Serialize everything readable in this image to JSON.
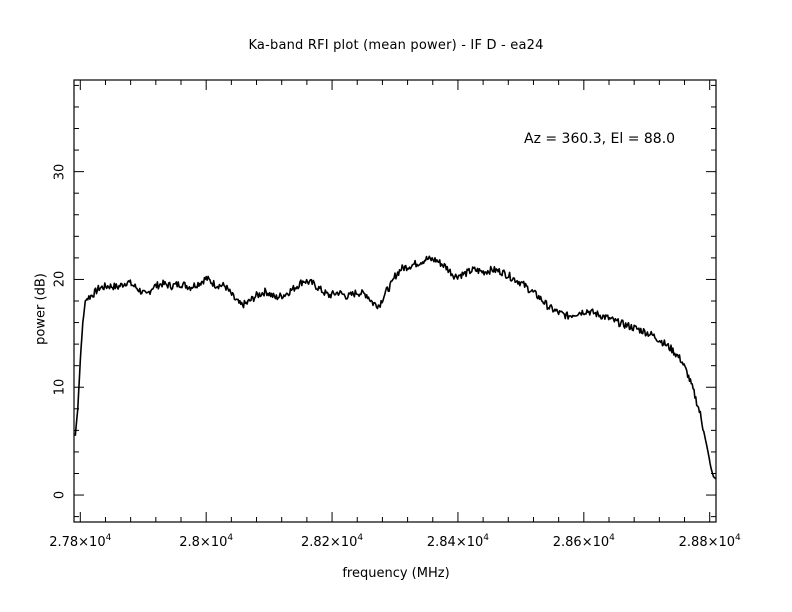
{
  "chart_data": {
    "type": "line",
    "title": "Ka-band RFI plot (mean power) - IF D - ea24",
    "xlabel": "frequency (MHz)",
    "ylabel": "power (dB)",
    "annotation": "Az = 360.3, El = 88.0",
    "xlim": [
      27790,
      28810
    ],
    "ylim": [
      -2.5,
      38.5
    ],
    "grid": false,
    "x_ticks": [
      {
        "value": 27800,
        "mantissa": "2.78",
        "exp": "4"
      },
      {
        "value": 28000,
        "mantissa": "2.8",
        "exp": "4"
      },
      {
        "value": 28200,
        "mantissa": "2.82",
        "exp": "4"
      },
      {
        "value": 28400,
        "mantissa": "2.84",
        "exp": "4"
      },
      {
        "value": 28600,
        "mantissa": "2.86",
        "exp": "4"
      },
      {
        "value": 28800,
        "mantissa": "2.88",
        "exp": "4"
      }
    ],
    "y_ticks": [
      {
        "value": 0,
        "label": "0"
      },
      {
        "value": 10,
        "label": "10"
      },
      {
        "value": 20,
        "label": "20"
      },
      {
        "value": 30,
        "label": "30"
      }
    ],
    "series": [
      {
        "color": "#000000",
        "x": [
          27792,
          27796,
          27800,
          27804,
          27808,
          27812,
          27820,
          27830,
          27845,
          27860,
          27875,
          27890,
          27905,
          27915,
          27930,
          27945,
          27960,
          27975,
          27990,
          28000,
          28015,
          28030,
          28045,
          28055,
          28065,
          28080,
          28095,
          28110,
          28125,
          28140,
          28155,
          28170,
          28185,
          28195,
          28210,
          28225,
          28240,
          28255,
          28265,
          28275,
          28285,
          28295,
          28300,
          28310,
          28320,
          28335,
          28350,
          28365,
          28380,
          28395,
          28410,
          28425,
          28440,
          28455,
          28470,
          28485,
          28500,
          28515,
          28530,
          28545,
          28560,
          28575,
          28590,
          28605,
          28620,
          28635,
          28650,
          28665,
          28680,
          28695,
          28710,
          28725,
          28740,
          28755,
          28765,
          28775,
          28785,
          28792,
          28798,
          28802,
          28806,
          28810
        ],
        "y": [
          5.5,
          8.0,
          12.5,
          16.0,
          18.0,
          18.3,
          18.6,
          19.2,
          19.4,
          19.3,
          19.8,
          19.2,
          18.5,
          19.3,
          19.6,
          19.4,
          19.6,
          19.3,
          19.7,
          20.1,
          19.5,
          19.4,
          18.2,
          17.6,
          17.8,
          18.5,
          18.9,
          18.3,
          18.6,
          19.2,
          19.9,
          19.6,
          18.9,
          18.5,
          18.8,
          18.4,
          18.8,
          18.6,
          17.8,
          17.6,
          18.8,
          19.6,
          20.3,
          21.0,
          21.2,
          21.5,
          21.9,
          21.8,
          21.2,
          20.3,
          20.5,
          20.9,
          20.7,
          20.9,
          20.7,
          20.2,
          19.7,
          19.0,
          18.3,
          17.4,
          16.9,
          16.6,
          16.9,
          17.1,
          16.8,
          16.5,
          16.1,
          15.8,
          15.5,
          15.2,
          14.8,
          14.2,
          13.5,
          12.5,
          11.2,
          9.5,
          7.5,
          5.5,
          3.8,
          2.5,
          1.7,
          1.5
        ]
      }
    ]
  }
}
